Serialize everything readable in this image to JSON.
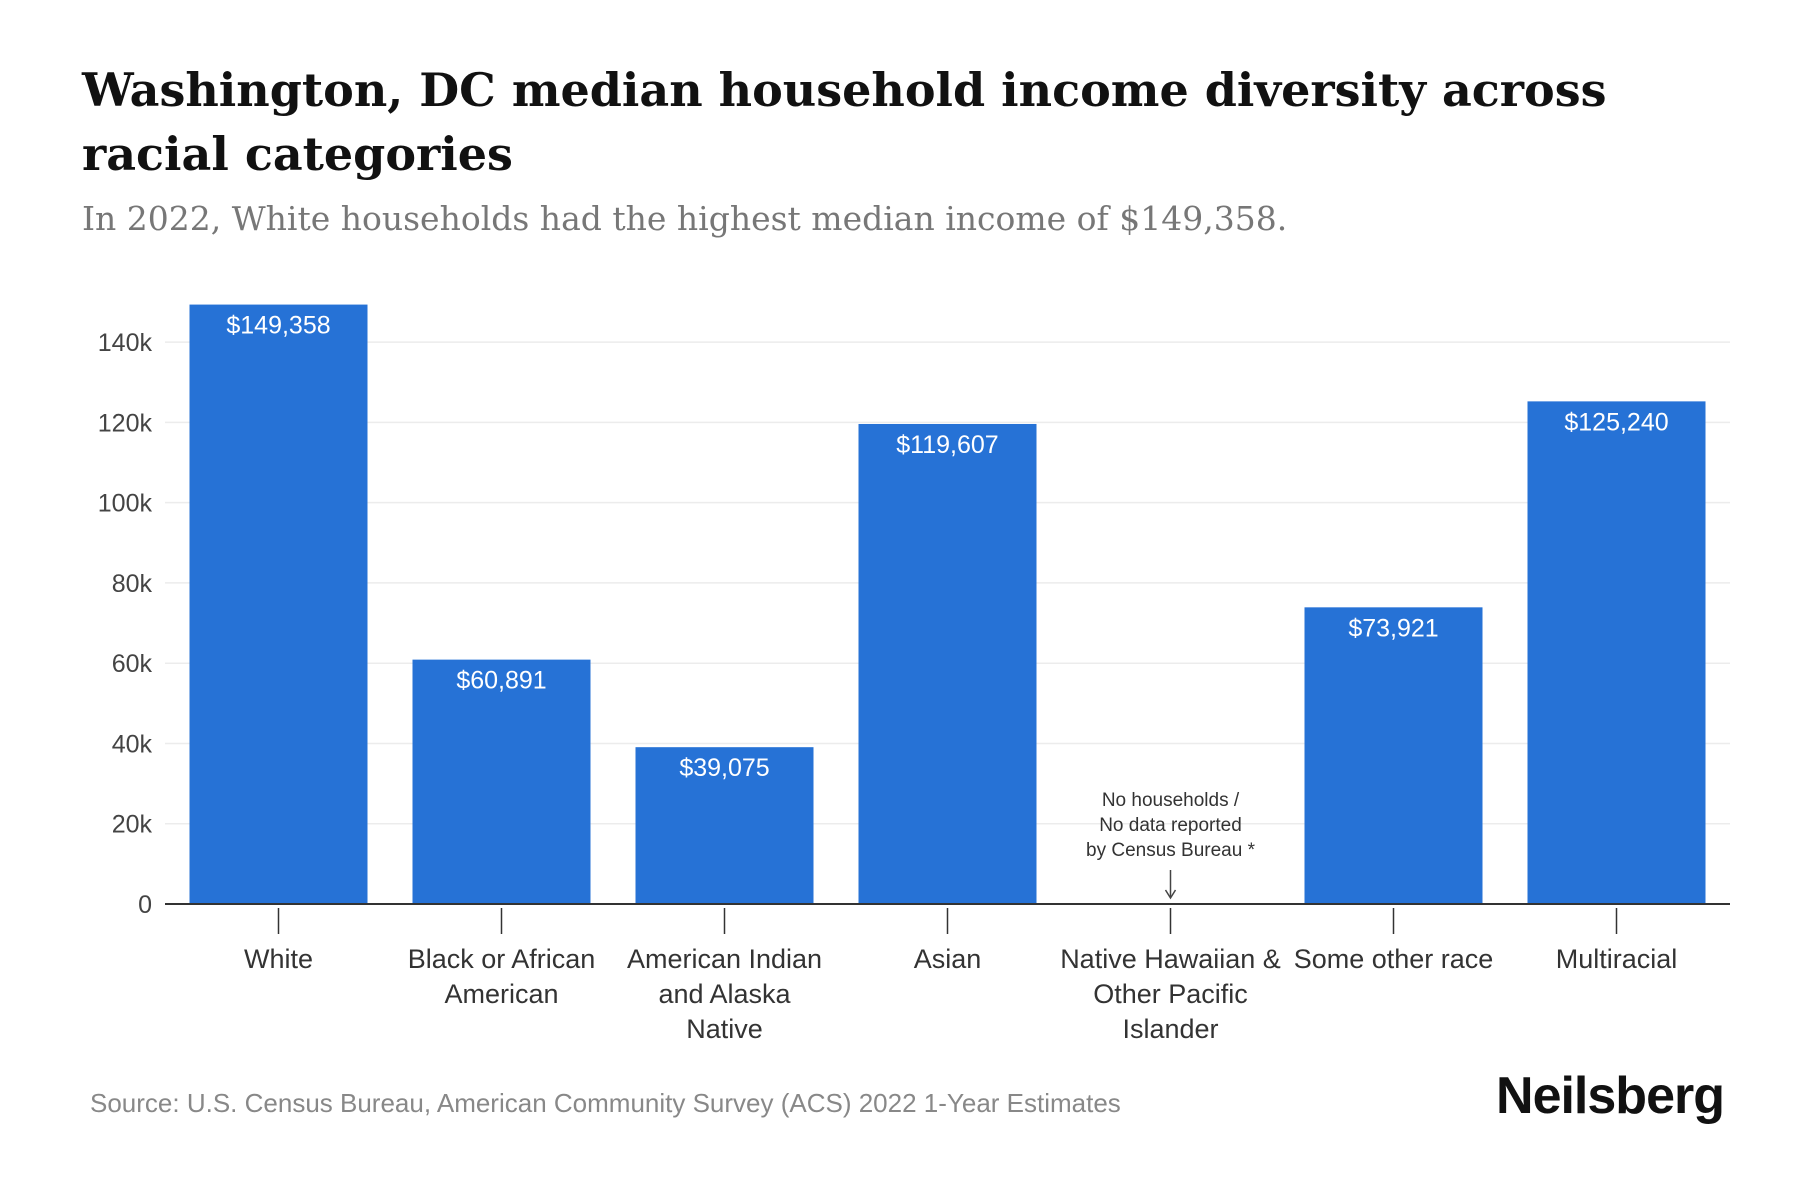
{
  "header": {
    "title": "Washington, DC median household income diversity across racial categories",
    "subtitle": "In 2022, White households had the highest median income of $149,358."
  },
  "chart_data": {
    "type": "bar",
    "title": "Washington, DC median household income diversity across racial categories",
    "subtitle": "In 2022, White households had the highest median income of $149,358.",
    "xlabel": "",
    "ylabel": "",
    "ylim": [
      0,
      150000
    ],
    "grid": true,
    "yticks": [
      0,
      20000,
      40000,
      60000,
      80000,
      100000,
      120000,
      140000
    ],
    "ytick_labels": [
      "0",
      "20k",
      "40k",
      "60k",
      "80k",
      "100k",
      "120k",
      "140k"
    ],
    "bar_color": "#2672d6",
    "categories": [
      [
        "White"
      ],
      [
        "Black or African",
        "American"
      ],
      [
        "American Indian",
        "and Alaska",
        "Native"
      ],
      [
        "Asian"
      ],
      [
        "Native Hawaiian &",
        "Other Pacific",
        "Islander"
      ],
      [
        "Some other race"
      ],
      [
        "Multiracial"
      ]
    ],
    "values": [
      149358,
      60891,
      39075,
      119607,
      null,
      73921,
      125240
    ],
    "data_labels": [
      "$149,358",
      "$60,891",
      "$39,075",
      "$119,607",
      "",
      "$73,921",
      "$125,240"
    ],
    "annotations": [
      {
        "category_index": 4,
        "lines": [
          "No households /",
          "No data reported",
          "by Census Bureau *"
        ]
      }
    ]
  },
  "footer": {
    "source": "Source: U.S. Census Bureau, American Community Survey (ACS) 2022 1-Year Estimates",
    "brand": "Neilsberg"
  }
}
